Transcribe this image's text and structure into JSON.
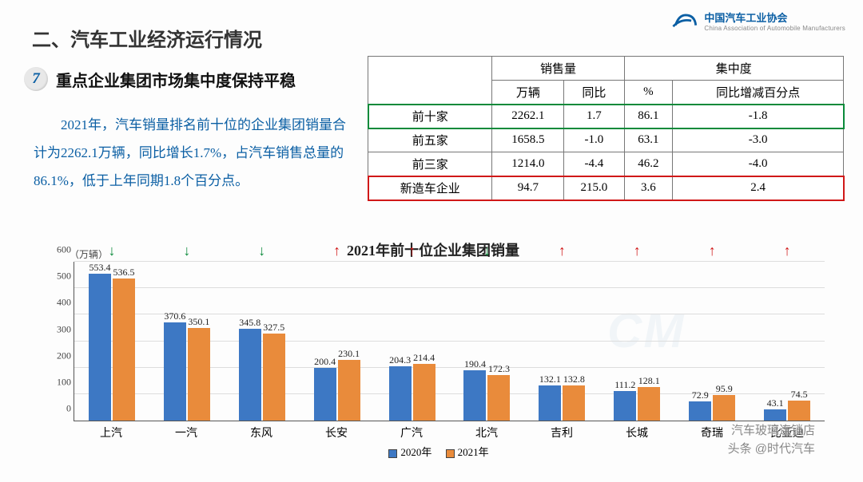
{
  "logo": {
    "brand": "中国汽车工业协会",
    "sub": "China Association of Automobile Manufacturers",
    "color": "#0b5fa4"
  },
  "section_title": "二、汽车工业经济运行情况",
  "subhead": {
    "num": "7",
    "text": "重点企业集团市场集中度保持平稳"
  },
  "body": "2021年，汽车销量排名前十位的企业集团销量合计为2262.1万辆，同比增长1.7%，占汽车销售总量的86.1%，低于上年同期1.8个百分点。",
  "table": {
    "head_group1": "销售量",
    "head_group2": "集中度",
    "col1": "万辆",
    "col2": "同比",
    "col3": "%",
    "col4": "同比增减百分点",
    "rows": [
      {
        "label": "前十家",
        "v1": "2262.1",
        "v2": "1.7",
        "v3": "86.1",
        "v4": "-1.8",
        "hl": "green"
      },
      {
        "label": "前五家",
        "v1": "1658.5",
        "v2": "-1.0",
        "v3": "63.1",
        "v4": "-3.0",
        "hl": ""
      },
      {
        "label": "前三家",
        "v1": "1214.0",
        "v2": "-4.4",
        "v3": "46.2",
        "v4": "-4.0",
        "hl": ""
      },
      {
        "label": "新造车企业",
        "v1": "94.7",
        "v2": "215.0",
        "v3": "3.6",
        "v4": "2.4",
        "hl": "red"
      }
    ]
  },
  "chart": {
    "title": "2021年前十位企业集团销量",
    "y_units": "（万辆）",
    "ymax": 600,
    "ytick_step": 100,
    "color_2020": "#3d78c4",
    "color_2021": "#e98b3b",
    "legend_2020": "2020年",
    "legend_2021": "2021年",
    "arrow_up_color": "#d01818",
    "arrow_down_color": "#0a8a3a",
    "categories": [
      "上汽",
      "一汽",
      "东风",
      "长安",
      "广汽",
      "北汽",
      "吉利",
      "长城",
      "奇瑞",
      "比亚迪"
    ],
    "v2020": [
      553.4,
      370.6,
      345.8,
      200.4,
      204.3,
      190.4,
      132.1,
      111.2,
      72.9,
      43.1
    ],
    "v2021": [
      536.5,
      350.1,
      327.5,
      230.1,
      214.4,
      172.3,
      132.8,
      128.1,
      95.9,
      74.5
    ],
    "dir": [
      "down",
      "down",
      "down",
      "up",
      "up",
      "down",
      "up",
      "up",
      "up",
      "up"
    ]
  },
  "watermark": {
    "line1": "汽车玻璃连锁店",
    "line2": "头条 @时代汽车"
  }
}
